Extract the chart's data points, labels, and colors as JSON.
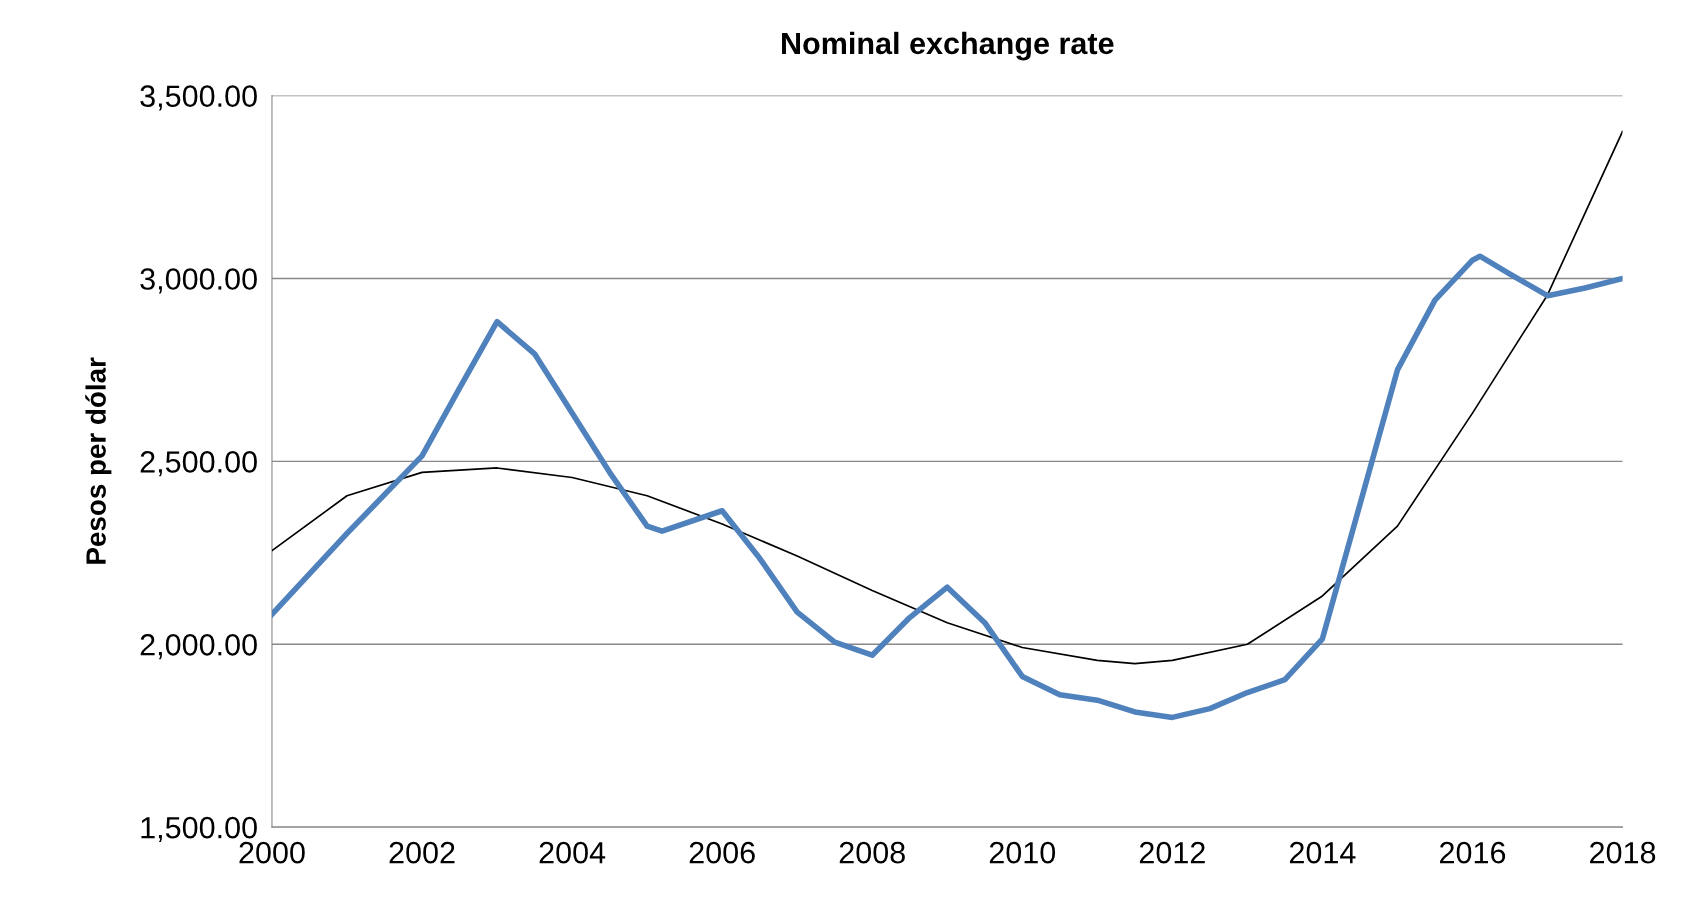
{
  "chart_data": {
    "type": "line",
    "title": "Nominal exchange rate",
    "ylabel": "Pesos per dólar",
    "xlim": [
      2000,
      2018
    ],
    "xticks": [
      2000,
      2002,
      2004,
      2006,
      2008,
      2010,
      2012,
      2014,
      2016,
      2018
    ],
    "ylim": [
      1500,
      3500
    ],
    "yticks": [
      {
        "value": 1500,
        "label": "1,500.00"
      },
      {
        "value": 2000,
        "label": "2,000.00"
      },
      {
        "value": 2500,
        "label": "2,500.00"
      },
      {
        "value": 3000,
        "label": "3,000.00"
      },
      {
        "value": 3500,
        "label": "3,500.00"
      }
    ],
    "grid": "y",
    "legend": false,
    "marker": "none",
    "line_style": "solid",
    "series": [
      {
        "color": "#4f81bd",
        "x": [
          2000,
          2001,
          2002,
          2002.5,
          2003,
          2003.5,
          2004,
          2004.5,
          2005,
          2005.2,
          2006,
          2006.5,
          2007,
          2007.5,
          2008,
          2008.5,
          2009,
          2009.5,
          2010,
          2010.5,
          2011,
          2011.5,
          2012,
          2012.5,
          2013,
          2013.5,
          2014,
          2014.5,
          2015,
          2015.5,
          2016,
          2016.1,
          2016.5,
          2017,
          2017.5,
          2018
        ],
        "values": [
          2082,
          2303,
          2515,
          2700,
          2882,
          2794,
          2632,
          2470,
          2323,
          2309,
          2365,
          2235,
          2088,
          2006,
          1970,
          2073,
          2156,
          2059,
          1912,
          1862,
          1847,
          1815,
          1800,
          1824,
          1868,
          1903,
          2015,
          2382,
          2750,
          2941,
          3050,
          3061,
          3012,
          2953,
          2974,
          3000
        ]
      },
      {
        "color": "#000000",
        "x": [
          2000,
          2001,
          2002,
          2003,
          2004,
          2005,
          2006,
          2007,
          2008,
          2009,
          2010,
          2011,
          2011.5,
          2012,
          2013,
          2014,
          2015,
          2016,
          2017,
          2018
        ],
        "values": [
          2256,
          2406,
          2470,
          2482,
          2456,
          2406,
          2329,
          2241,
          2147,
          2059,
          1991,
          1956,
          1947,
          1956,
          2000,
          2132,
          2323,
          2632,
          2955,
          3402
        ]
      }
    ]
  }
}
